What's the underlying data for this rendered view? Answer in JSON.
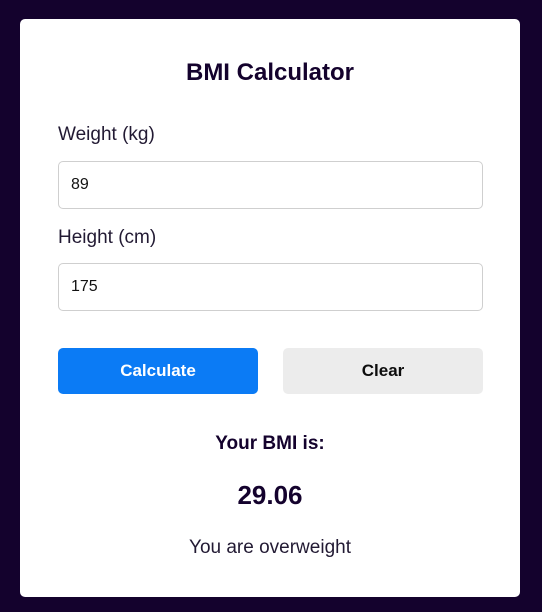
{
  "app": {
    "title": "BMI Calculator"
  },
  "form": {
    "weight_label": "Weight (kg)",
    "weight_value": "89",
    "height_label": "Height (cm)",
    "height_value": "175"
  },
  "actions": {
    "calculate_label": "Calculate",
    "clear_label": "Clear"
  },
  "result": {
    "label": "Your BMI is:",
    "value": "29.06",
    "message": "You are overweight"
  },
  "colors": {
    "background": "#14022d",
    "card": "#ffffff",
    "primary": "#0b7bf5",
    "secondary": "#ececec"
  }
}
